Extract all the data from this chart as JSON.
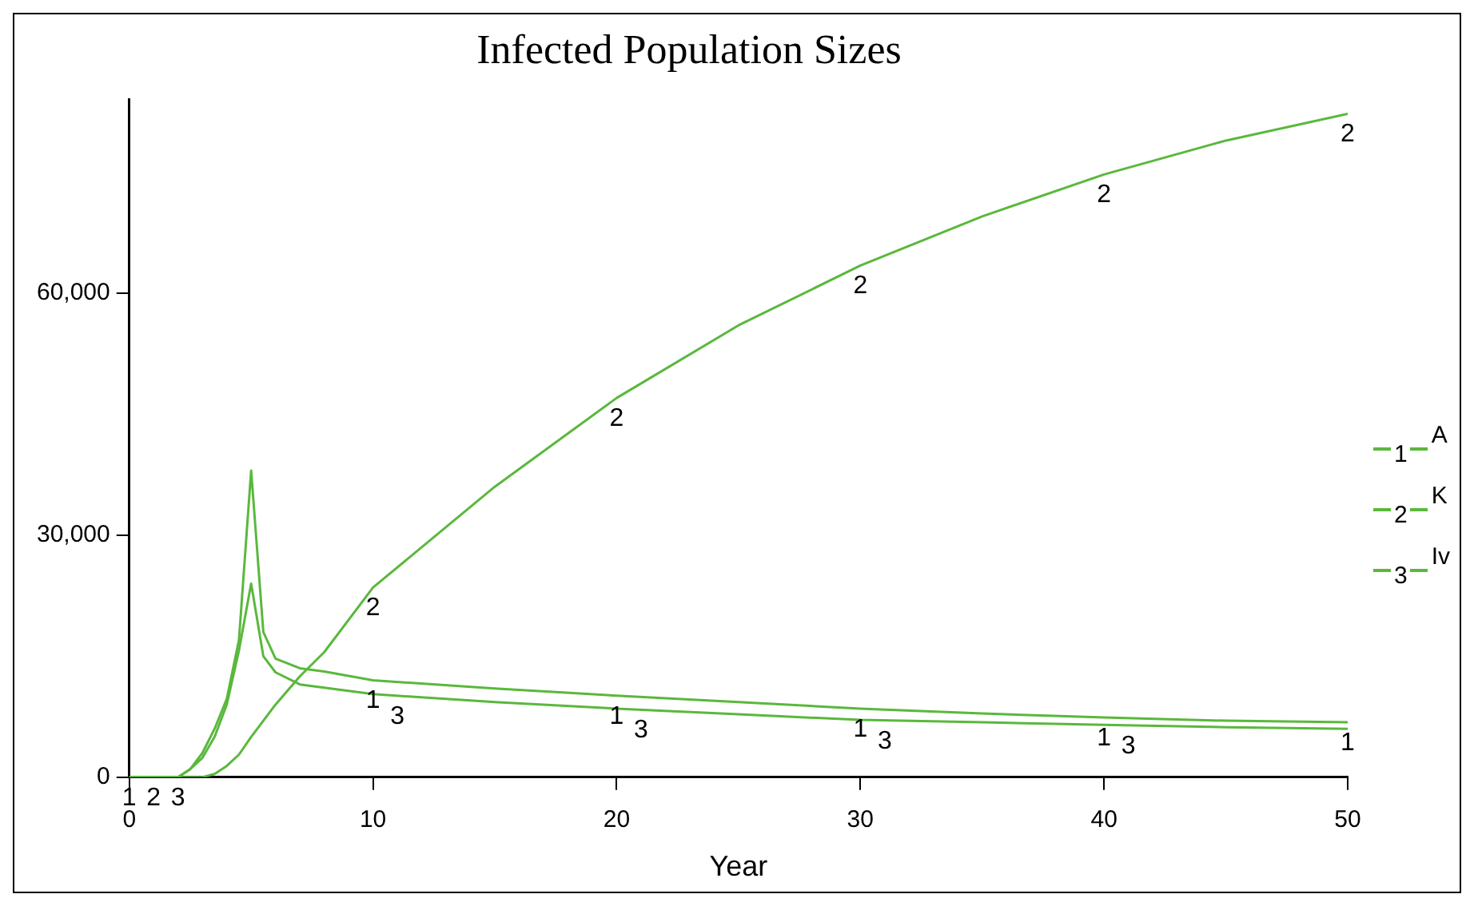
{
  "chart_data": {
    "type": "line",
    "title": "Infected Population Sizes",
    "xlabel": "Year",
    "x": [
      0,
      2,
      2.5,
      3,
      3.5,
      4,
      4.5,
      5,
      5.5,
      6,
      7,
      8,
      10,
      15,
      20,
      25,
      30,
      35,
      40,
      45,
      50
    ],
    "series": [
      {
        "name": "A",
        "color": "#5ab83c",
        "values": [
          0,
          0,
          1000,
          3000,
          6000,
          9700,
          17000,
          38000,
          18000,
          14700,
          13500,
          13100,
          12000,
          11000,
          10100,
          9300,
          8500,
          7900,
          7400,
          7000,
          6800
        ]
      },
      {
        "name": "K",
        "color": "#5ab83c",
        "values": [
          0,
          0,
          0,
          0,
          400,
          1400,
          2800,
          5000,
          7000,
          9000,
          12500,
          15500,
          23500,
          36000,
          47000,
          56000,
          63400,
          69500,
          74700,
          78900,
          82200
        ]
      },
      {
        "name": "Iv",
        "color": "#5ab83c",
        "values": [
          0,
          0,
          1000,
          2400,
          5000,
          9000,
          15700,
          24000,
          15000,
          13000,
          11500,
          11100,
          10300,
          9300,
          8500,
          7800,
          7100,
          6800,
          6500,
          6200,
          6000
        ]
      }
    ],
    "xlim": [
      0,
      50
    ],
    "xticks": [
      0,
      10,
      20,
      30,
      40,
      50
    ],
    "ylim": [
      0,
      84000
    ],
    "yticks": [
      0,
      {
        "value": 30000,
        "label": "30,000"
      },
      {
        "value": 60000,
        "label": "60,000"
      }
    ],
    "annotations": [
      "1",
      "2",
      "3",
      {
        "text": "1",
        "x": 0,
        "y": 0
      },
      {
        "text": "2",
        "x": 1,
        "y": 0
      },
      {
        "text": "3",
        "x": 2,
        "y": 0
      },
      {
        "text": "1",
        "x": 10,
        "y": 12000
      },
      {
        "text": "2",
        "x": 10,
        "y": 23500
      },
      {
        "text": "3",
        "x": 11,
        "y": 10100
      },
      {
        "text": "1",
        "x": 20,
        "y": 10100
      },
      {
        "text": "2",
        "x": 20,
        "y": 47000
      },
      {
        "text": "3",
        "x": 21,
        "y": 8400
      },
      {
        "text": "1",
        "x": 30,
        "y": 8500
      },
      {
        "text": "2",
        "x": 30,
        "y": 63400
      },
      {
        "text": "3",
        "x": 31,
        "y": 7000
      },
      {
        "text": "1",
        "x": 40,
        "y": 7400
      },
      {
        "text": "2",
        "x": 40,
        "y": 74700
      },
      {
        "text": "3",
        "x": 41,
        "y": 6400
      },
      {
        "text": "1",
        "x": 50,
        "y": 6800
      },
      {
        "text": "2",
        "x": 50,
        "y": 82200
      }
    ],
    "grid": false,
    "legend": "right",
    "marker": "none",
    "line_style": "solid"
  }
}
